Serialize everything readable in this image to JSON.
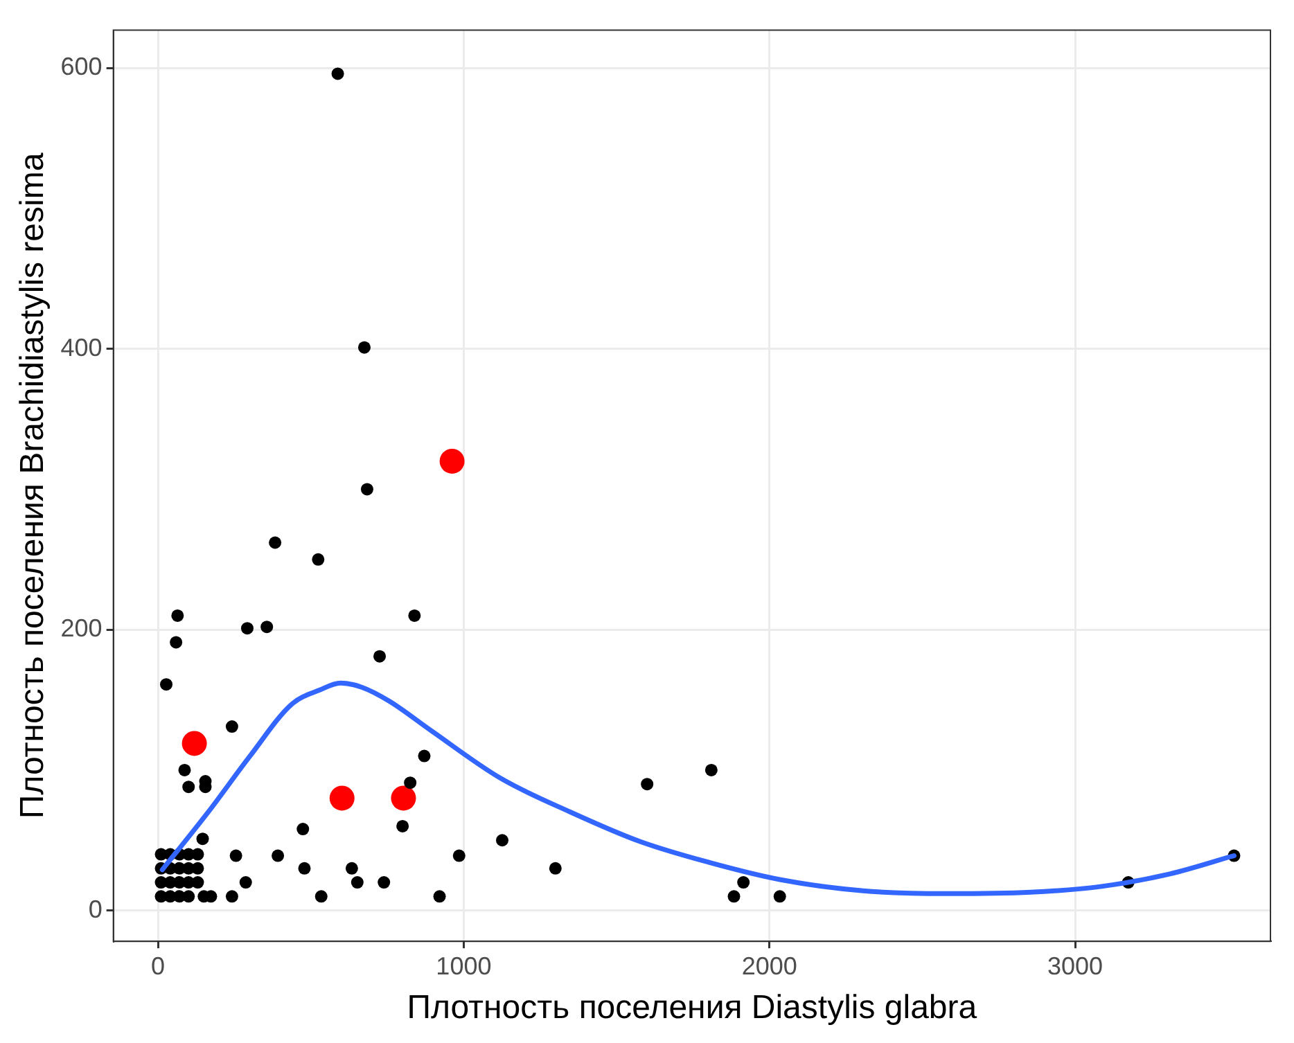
{
  "chart_data": {
    "type": "scatter",
    "xlabel": "Плотность поселения Diastylis glabra",
    "ylabel": "Плотность поселения Brachidiastylis resima",
    "xlim": [
      -146,
      3639
    ],
    "ylim": [
      -22,
      627
    ],
    "xticks": [
      0,
      1000,
      2000,
      3000
    ],
    "yticks": [
      0,
      200,
      400,
      600
    ],
    "grid": true,
    "legend": false,
    "series": [
      {
        "type": "scatter",
        "color": "#000000",
        "marker": "circle",
        "x": [
          588,
          675,
          684,
          383,
          524,
          64,
          59,
          27,
          292,
          356,
          725,
          839,
          242,
          871,
          87,
          100,
          155,
          155,
          825,
          800,
          474,
          985,
          1126,
          1300,
          1600,
          1810,
          1915,
          1884,
          2034,
          3174,
          3520,
          479,
          634,
          652,
          739,
          921,
          534,
          255,
          392,
          287,
          242,
          173,
          146,
          10,
          40,
          70,
          100,
          130,
          10,
          40,
          70,
          100,
          130,
          10,
          40,
          70,
          100,
          130,
          10,
          40,
          70,
          100,
          150
        ],
        "values": [
          596,
          401,
          300,
          262,
          250,
          210,
          191,
          161,
          201,
          202,
          181,
          210,
          131,
          110,
          100,
          88,
          92,
          88,
          91,
          60,
          58,
          39,
          50,
          30,
          90,
          100,
          20,
          10,
          10,
          20,
          39,
          30,
          30,
          20,
          20,
          10,
          10,
          39,
          39,
          20,
          10,
          10,
          51,
          40,
          40,
          40,
          40,
          40,
          30,
          30,
          30,
          30,
          30,
          20,
          20,
          20,
          20,
          20,
          10,
          10,
          10,
          10,
          10
        ]
      },
      {
        "type": "scatter",
        "color": "#ff0000",
        "marker": "circle",
        "x": [
          119,
          602,
          803,
          962
        ],
        "values": [
          119,
          80,
          80,
          320
        ]
      },
      {
        "type": "line",
        "color": "#3366ff",
        "marker": "none",
        "line_style": "solid",
        "x": [
          14,
          164,
          301,
          438,
          529,
          597,
          666,
          757,
          894,
          1122,
          1350,
          1578,
          1806,
          2034,
          2307,
          2581,
          2854,
          3083,
          3310,
          3520
        ],
        "values": [
          29,
          70,
          110,
          147,
          157,
          162,
          159,
          149,
          128,
          94,
          70,
          49,
          34,
          22,
          14,
          12,
          13,
          17,
          26,
          39
        ]
      }
    ]
  }
}
